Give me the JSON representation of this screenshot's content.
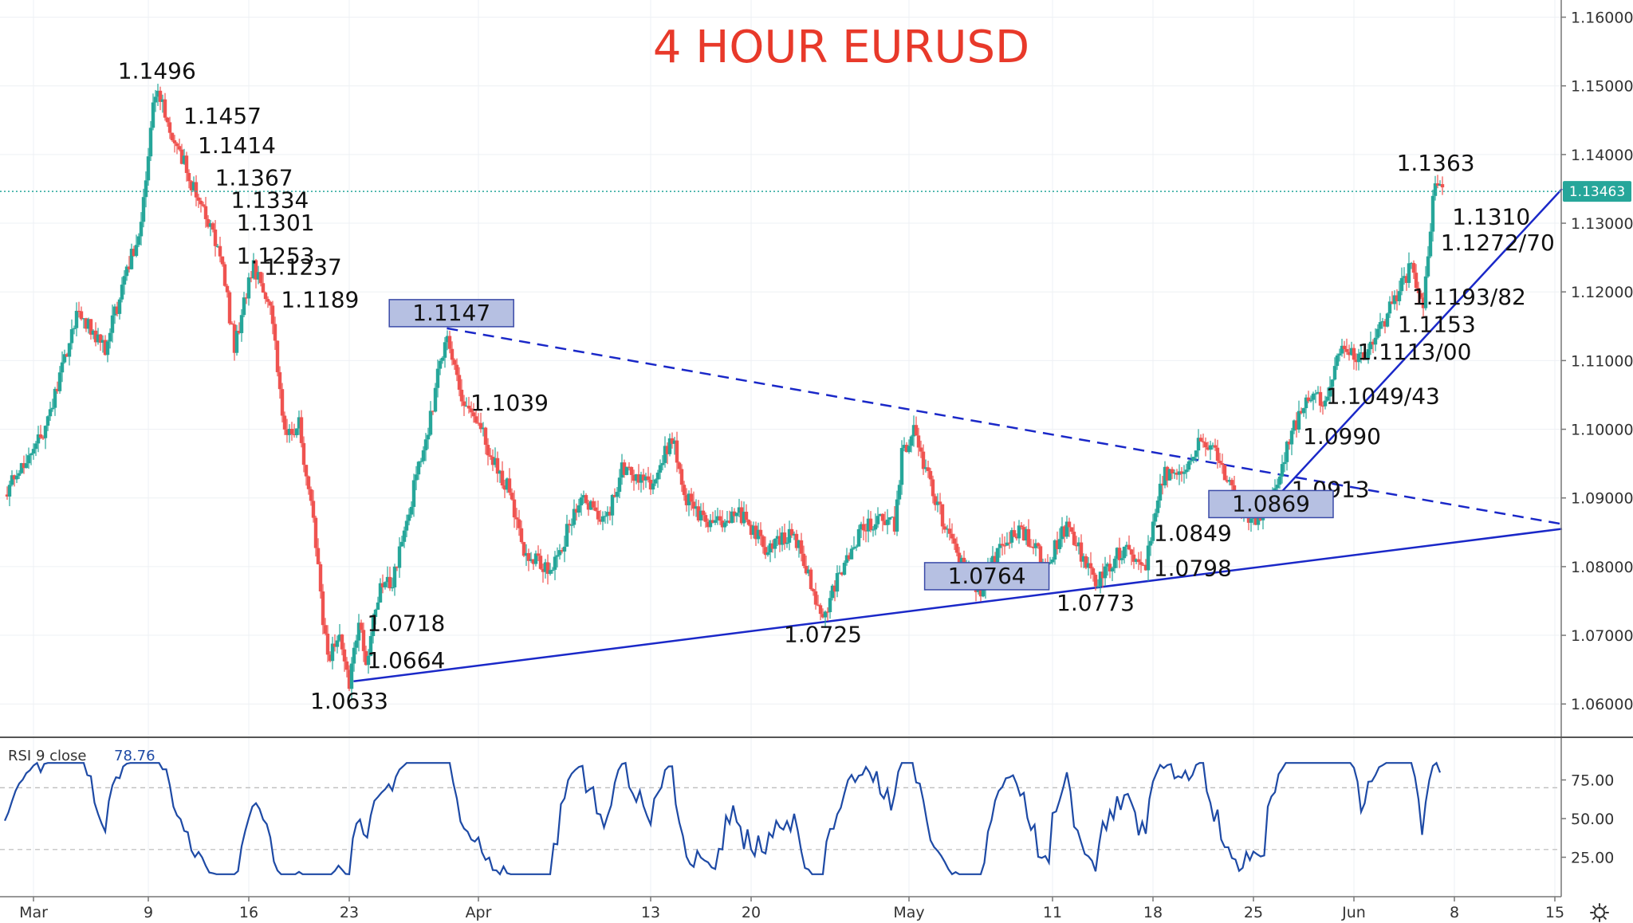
{
  "chart_data": {
    "type": "candlestick",
    "title": "4 HOUR EURUSD",
    "title_color": "#e8392a",
    "up_color": "#26a69a",
    "down_color": "#ef5350",
    "trend_color": "#1a28c8",
    "box_fill": "#b6c0e2",
    "x_ticks": [
      {
        "label": "Mar",
        "day": 0
      },
      {
        "label": "9",
        "day": 8
      },
      {
        "label": "16",
        "day": 15
      },
      {
        "label": "23",
        "day": 22
      },
      {
        "label": "Apr",
        "day": 31
      },
      {
        "label": "13",
        "day": 43
      },
      {
        "label": "20",
        "day": 50
      },
      {
        "label": "May",
        "day": 61
      },
      {
        "label": "11",
        "day": 71
      },
      {
        "label": "18",
        "day": 78
      },
      {
        "label": "25",
        "day": 85
      },
      {
        "label": "Jun",
        "day": 92
      },
      {
        "label": "8",
        "day": 99
      },
      {
        "label": "15",
        "day": 106
      }
    ],
    "y_ticks": [
      "1.06000",
      "1.07000",
      "1.08000",
      "1.09000",
      "1.10000",
      "1.11000",
      "1.12000",
      "1.13000",
      "1.14000",
      "1.15000",
      "1.16000"
    ],
    "ylim": [
      1.0555,
      1.1625
    ],
    "xlim": [
      -2,
      107
    ],
    "current_price": "1.13463",
    "current_value": 1.13463,
    "anchors": [
      [
        -2,
        1.0905
      ],
      [
        1,
        1.101
      ],
      [
        3,
        1.117
      ],
      [
        5,
        1.112
      ],
      [
        7.5,
        1.13
      ],
      [
        8.5,
        1.1496
      ],
      [
        10,
        1.1414
      ],
      [
        11.5,
        1.1334
      ],
      [
        13,
        1.1253
      ],
      [
        14,
        1.112
      ],
      [
        15.3,
        1.1237
      ],
      [
        16.5,
        1.1189
      ],
      [
        17.5,
        1.099
      ],
      [
        18.5,
        1.101
      ],
      [
        19.5,
        1.086
      ],
      [
        20.5,
        1.066
      ],
      [
        21.3,
        1.07
      ],
      [
        22,
        1.0633
      ],
      [
        22.6,
        1.0718
      ],
      [
        23.2,
        1.0664
      ],
      [
        24,
        1.076
      ],
      [
        25,
        1.078
      ],
      [
        26,
        1.087
      ],
      [
        27.5,
        1.1
      ],
      [
        28.8,
        1.1147
      ],
      [
        29.8,
        1.1039
      ],
      [
        31,
        1.101
      ],
      [
        32,
        1.095
      ],
      [
        33,
        1.092
      ],
      [
        34,
        1.083
      ],
      [
        36,
        1.079
      ],
      [
        37,
        1.084
      ],
      [
        38,
        1.09
      ],
      [
        40,
        1.087
      ],
      [
        41,
        1.094
      ],
      [
        43,
        1.092
      ],
      [
        44.5,
        1.0985
      ],
      [
        45.5,
        1.09
      ],
      [
        47,
        1.086
      ],
      [
        49,
        1.088
      ],
      [
        51,
        1.083
      ],
      [
        53,
        1.085
      ],
      [
        55,
        1.0725
      ],
      [
        56,
        1.078
      ],
      [
        57.5,
        1.085
      ],
      [
        59,
        1.087
      ],
      [
        60,
        1.086
      ],
      [
        60.5,
        1.096
      ],
      [
        61.3,
        1.1
      ],
      [
        62.5,
        1.092
      ],
      [
        64,
        1.083
      ],
      [
        66,
        1.0764
      ],
      [
        67.5,
        1.084
      ],
      [
        69,
        1.085
      ],
      [
        70.5,
        1.08
      ],
      [
        72,
        1.086
      ],
      [
        74,
        1.0773
      ],
      [
        76,
        1.083
      ],
      [
        77.5,
        1.0798
      ],
      [
        78.5,
        1.093
      ],
      [
        80,
        1.094
      ],
      [
        81.5,
        1.099
      ],
      [
        82.5,
        1.096
      ],
      [
        84,
        1.088
      ],
      [
        85.5,
        1.0869
      ],
      [
        86.5,
        1.0913
      ],
      [
        87.5,
        1.099
      ],
      [
        89,
        1.1049
      ],
      [
        90,
        1.1043
      ],
      [
        91,
        1.1113
      ],
      [
        92.5,
        1.11
      ],
      [
        94,
        1.1153
      ],
      [
        95,
        1.1193
      ],
      [
        96,
        1.124
      ],
      [
        96.8,
        1.1182
      ],
      [
        97.3,
        1.1272
      ],
      [
        97.6,
        1.1363
      ],
      [
        98.2,
        1.1346
      ]
    ],
    "price_labels": [
      {
        "text": "1.1496",
        "day": 8.6,
        "value": 1.1497,
        "dx": 0,
        "dy": -12,
        "anchor": "middle"
      },
      {
        "text": "1.1457",
        "day": 10.0,
        "value": 1.1457,
        "dx": 8,
        "dy": 10,
        "anchor": "start"
      },
      {
        "text": "1.1414",
        "day": 11.0,
        "value": 1.1414,
        "dx": 8,
        "dy": 10,
        "anchor": "start"
      },
      {
        "text": "1.1367",
        "day": 12.2,
        "value": 1.1367,
        "dx": 8,
        "dy": 10,
        "anchor": "start"
      },
      {
        "text": "1.1334",
        "day": 13.3,
        "value": 1.1334,
        "dx": 8,
        "dy": 10,
        "anchor": "start"
      },
      {
        "text": "1.1301",
        "day": 13.7,
        "value": 1.1301,
        "dx": 8,
        "dy": 10,
        "anchor": "start"
      },
      {
        "text": "1.1253",
        "day": 13.7,
        "value": 1.1253,
        "dx": 8,
        "dy": 10,
        "anchor": "start"
      },
      {
        "text": "1.1237",
        "day": 15.6,
        "value": 1.1237,
        "dx": 8,
        "dy": 10,
        "anchor": "start"
      },
      {
        "text": "1.1189",
        "day": 16.8,
        "value": 1.1189,
        "dx": 8,
        "dy": 10,
        "anchor": "start"
      },
      {
        "text": "1.1039",
        "day": 30.0,
        "value": 1.1039,
        "dx": 8,
        "dy": 10,
        "anchor": "start"
      },
      {
        "text": "1.0718",
        "day": 22.8,
        "value": 1.0718,
        "dx": 8,
        "dy": 10,
        "anchor": "start"
      },
      {
        "text": "1.0664",
        "day": 22.8,
        "value": 1.0664,
        "dx": 8,
        "dy": 10,
        "anchor": "start"
      },
      {
        "text": "1.0633",
        "day": 22.0,
        "value": 1.0633,
        "dx": 0,
        "dy": 34,
        "anchor": "middle"
      },
      {
        "text": "1.0725",
        "day": 55.0,
        "value": 1.0725,
        "dx": 0,
        "dy": 30,
        "anchor": "middle"
      },
      {
        "text": "1.0773",
        "day": 74.0,
        "value": 1.0773,
        "dx": 0,
        "dy": 32,
        "anchor": "middle"
      },
      {
        "text": "1.0849",
        "day": 77.6,
        "value": 1.0849,
        "dx": 8,
        "dy": 10,
        "anchor": "start"
      },
      {
        "text": "1.0798",
        "day": 77.6,
        "value": 1.0798,
        "dx": 8,
        "dy": 10,
        "anchor": "start"
      },
      {
        "text": "1.0913",
        "day": 87.2,
        "value": 1.0913,
        "dx": 8,
        "dy": 10,
        "anchor": "start"
      },
      {
        "text": "1.0990",
        "day": 88.0,
        "value": 1.099,
        "dx": 8,
        "dy": 10,
        "anchor": "start"
      },
      {
        "text": "1.1049/43",
        "day": 89.6,
        "value": 1.1049,
        "dx": 8,
        "dy": 10,
        "anchor": "start"
      },
      {
        "text": "1.1113/00",
        "day": 91.8,
        "value": 1.1113,
        "dx": 8,
        "dy": 10,
        "anchor": "start"
      },
      {
        "text": "1.1153",
        "day": 94.6,
        "value": 1.1153,
        "dx": 8,
        "dy": 10,
        "anchor": "start"
      },
      {
        "text": "1.1193/82",
        "day": 95.6,
        "value": 1.1193,
        "dx": 8,
        "dy": 10,
        "anchor": "start"
      },
      {
        "text": "1.1272/70",
        "day": 97.6,
        "value": 1.1272,
        "dx": 8,
        "dy": 10,
        "anchor": "start"
      },
      {
        "text": "1.1310",
        "day": 98.4,
        "value": 1.131,
        "dx": 8,
        "dy": 10,
        "anchor": "start"
      },
      {
        "text": "1.1363",
        "day": 97.7,
        "value": 1.1363,
        "dx": 0,
        "dy": -12,
        "anchor": "middle"
      }
    ],
    "boxed_labels": [
      {
        "text": "1.1147",
        "day": 28.9,
        "value": 1.1147
      },
      {
        "text": "1.0764",
        "day": 66.2,
        "value": 1.0764
      },
      {
        "text": "1.0869",
        "day": 86.0,
        "value": 1.0869
      }
    ],
    "trendlines": [
      {
        "style": "dashed",
        "from": [
          28.8,
          1.1147
        ],
        "to": [
          106.5,
          1.0862
        ]
      },
      {
        "style": "solid",
        "from": [
          22.3,
          1.0633
        ],
        "to": [
          106.5,
          1.0855
        ]
      },
      {
        "style": "solid",
        "from": [
          85.2,
          1.0869
        ],
        "to": [
          106.5,
          1.135
        ]
      }
    ],
    "rsi": {
      "label": "RSI 9 close",
      "value": "78.76",
      "y_ticks": [
        "25.00",
        "50.00",
        "75.00"
      ],
      "bands": [
        30,
        70
      ],
      "line_color": "#1e4aa5"
    }
  }
}
